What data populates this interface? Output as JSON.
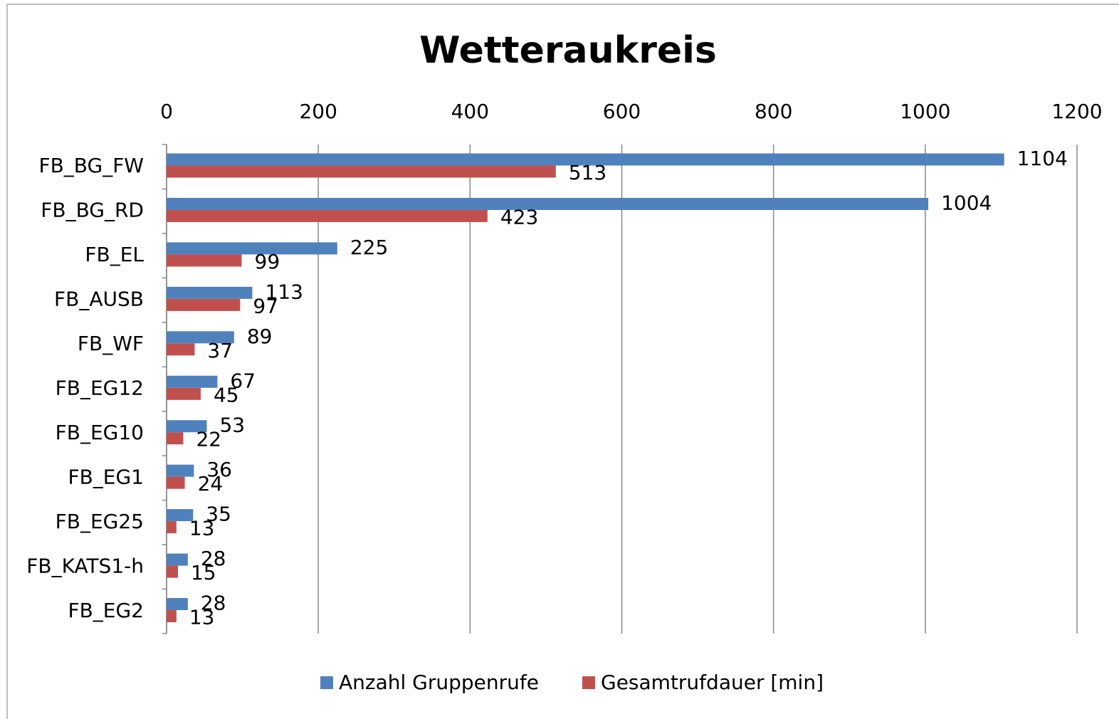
{
  "chart_data": {
    "type": "barh",
    "title": "Wetteraukreis",
    "categories": [
      "FB_BG_FW",
      "FB_BG_RD",
      "FB_EL",
      "FB_AUSB",
      "FB_WF",
      "FB_EG12",
      "FB_EG10",
      "FB_EG1",
      "FB_EG25",
      "FB_KATS1-h",
      "FB_EG2"
    ],
    "series": [
      {
        "name": "Anzahl Gruppenrufe",
        "color": "#4f81bd",
        "values": [
          1104,
          1004,
          225,
          113,
          89,
          67,
          53,
          36,
          35,
          28,
          28
        ]
      },
      {
        "name": "Gesamtrufdauer [min]",
        "color": "#c0504d",
        "values": [
          513,
          423,
          99,
          97,
          37,
          45,
          22,
          24,
          13,
          15,
          13
        ]
      }
    ],
    "xlim": [
      0,
      1200
    ],
    "xticks": [
      0,
      200,
      400,
      600,
      800,
      1000,
      1200
    ],
    "grid": true,
    "legend": "bottom"
  }
}
